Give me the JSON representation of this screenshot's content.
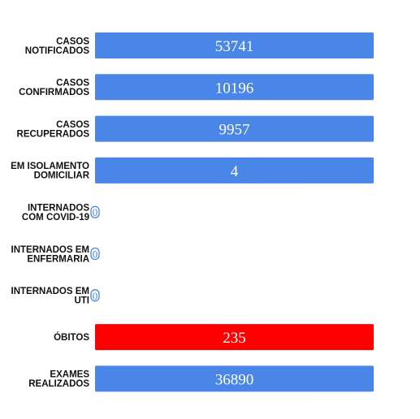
{
  "chart_data": {
    "type": "bar",
    "orientation": "horizontal",
    "categories": [
      [
        "CASOS",
        "NOTIFICADOS"
      ],
      [
        "CASOS",
        "CONFIRMADOS"
      ],
      [
        "CASOS",
        "RECUPERADOS"
      ],
      [
        "EM ISOLAMENTO",
        "DOMICILIAR"
      ],
      [
        "INTERNADOS",
        "COM COVID-19"
      ],
      [
        "INTERNADOS EM",
        "ENFERMARIA"
      ],
      [
        "INTERNADOS EM",
        "UTI"
      ],
      [
        "ÓBITOS"
      ],
      [
        "EXAMES",
        "REALIZADOS"
      ]
    ],
    "values": [
      53741,
      10196,
      9957,
      4,
      0,
      0,
      0,
      235,
      36890
    ],
    "value_labels": [
      "53741",
      "10196",
      "9957",
      "4",
      "0",
      "0",
      "0",
      "235",
      "36890"
    ],
    "colors": [
      "#4a86e8",
      "#4a86e8",
      "#4a86e8",
      "#4a86e8",
      "#4a86e8",
      "#4a86e8",
      "#4a86e8",
      "#ff0000",
      "#4a86e8"
    ],
    "grid": false,
    "legend": "none"
  }
}
